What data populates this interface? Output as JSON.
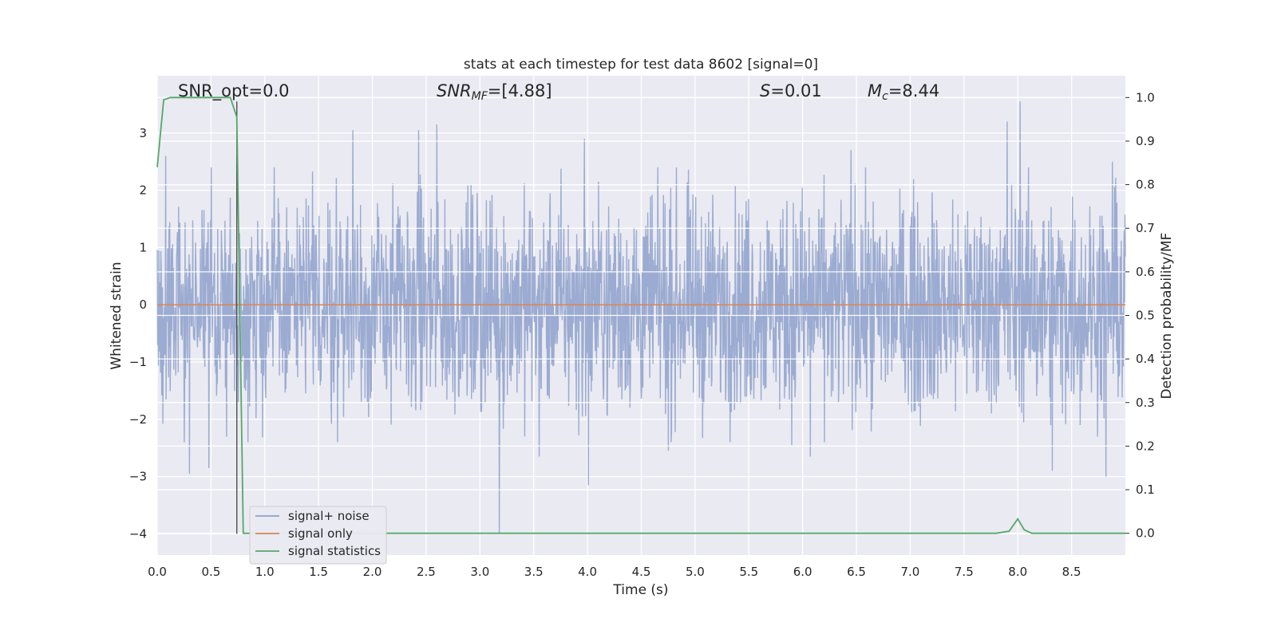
{
  "chart_data": {
    "type": "line",
    "title": "stats at each timestep for test data 8602 [signal=0]",
    "xlabel": "Time (s)",
    "ylabel": "Whitened strain",
    "y2label": "Detection probability/MF",
    "xlim": [
      0.0,
      9.0
    ],
    "ylim": [
      -4.37,
      4.0
    ],
    "y2lim": [
      -0.05,
      1.05
    ],
    "xticks": [
      0.0,
      0.5,
      1.0,
      1.5,
      2.0,
      2.5,
      3.0,
      3.5,
      4.0,
      4.5,
      5.0,
      5.5,
      6.0,
      6.5,
      7.0,
      7.5,
      8.0,
      8.5
    ],
    "xtick_labels": [
      "0.0",
      "0.5",
      "1.0",
      "1.5",
      "2.0",
      "2.5",
      "3.0",
      "3.5",
      "4.0",
      "4.5",
      "5.0",
      "5.5",
      "6.0",
      "6.5",
      "7.0",
      "7.5",
      "8.0",
      "8.5"
    ],
    "yticks": [
      3,
      2,
      1,
      0,
      -1,
      -2,
      -3,
      -4
    ],
    "ytick_labels": [
      "3",
      "2",
      "1",
      "0",
      "−1",
      "−2",
      "−3",
      "−4"
    ],
    "y2ticks": [
      1.0,
      0.9,
      0.8,
      0.7,
      0.6,
      0.5,
      0.4,
      0.3,
      0.2,
      0.1,
      0.0
    ],
    "y2tick_labels": [
      "1.0",
      "0.9",
      "0.8",
      "0.7",
      "0.6",
      "0.5",
      "0.4",
      "0.3",
      "0.2",
      "0.1",
      "0.0"
    ],
    "grid": true,
    "legend_position": "lower-left",
    "series": [
      {
        "name": "signal+ noise",
        "axis": "left",
        "color": "#8da0cb",
        "style": "dense noise",
        "envelope": {
          "typical_low": -1.6,
          "typical_high": 1.6,
          "max": 3.55,
          "min": -4.0
        },
        "peaks": [
          [
            0.08,
            2.6
          ],
          [
            0.3,
            -2.95
          ],
          [
            0.48,
            -2.85
          ],
          [
            1.82,
            3.05
          ],
          [
            2.43,
            3.05
          ],
          [
            2.6,
            3.15
          ],
          [
            3.18,
            -4.0
          ],
          [
            3.55,
            -2.65
          ],
          [
            3.97,
            2.9
          ],
          [
            4.01,
            -3.15
          ],
          [
            4.75,
            -2.55
          ],
          [
            5.9,
            -2.45
          ],
          [
            6.07,
            -2.65
          ],
          [
            6.45,
            2.7
          ],
          [
            7.9,
            3.2
          ],
          [
            8.02,
            3.55
          ],
          [
            8.32,
            -2.9
          ],
          [
            8.82,
            -3.0
          ],
          [
            8.88,
            2.5
          ]
        ]
      },
      {
        "name": "signal only",
        "axis": "left",
        "color": "#dd8452",
        "x": [
          0.0,
          9.0
        ],
        "y": [
          0.0,
          0.0
        ]
      },
      {
        "name": "signal statistics",
        "axis": "right",
        "color": "#55a868",
        "x": [
          0.0,
          0.06,
          0.12,
          0.3,
          0.5,
          0.68,
          0.74,
          0.8,
          1.0,
          2.0,
          3.0,
          4.0,
          5.0,
          6.0,
          7.0,
          7.6,
          7.8,
          7.92,
          8.0,
          8.06,
          8.13,
          8.3,
          9.0
        ],
        "y": [
          0.84,
          0.995,
          1.0,
          1.0,
          1.0,
          1.0,
          0.955,
          0.0,
          0.0,
          0.0,
          0.0,
          0.0,
          0.0,
          0.0,
          0.0,
          0.0,
          0.0,
          0.005,
          0.033,
          0.008,
          0.0,
          0.0,
          0.0
        ]
      }
    ],
    "vline": {
      "x": 0.74,
      "y_from": -4.0,
      "y_to": 3.55,
      "color": "#444444"
    },
    "annotations": [
      {
        "text": "SNR_opt=0.0",
        "x": 0.2
      },
      {
        "text": "SNR_MF=[4.88]",
        "x": 2.6
      },
      {
        "text": "S=0.01",
        "x": 5.6
      },
      {
        "text": "M_c=8.44",
        "x": 6.6
      }
    ]
  }
}
